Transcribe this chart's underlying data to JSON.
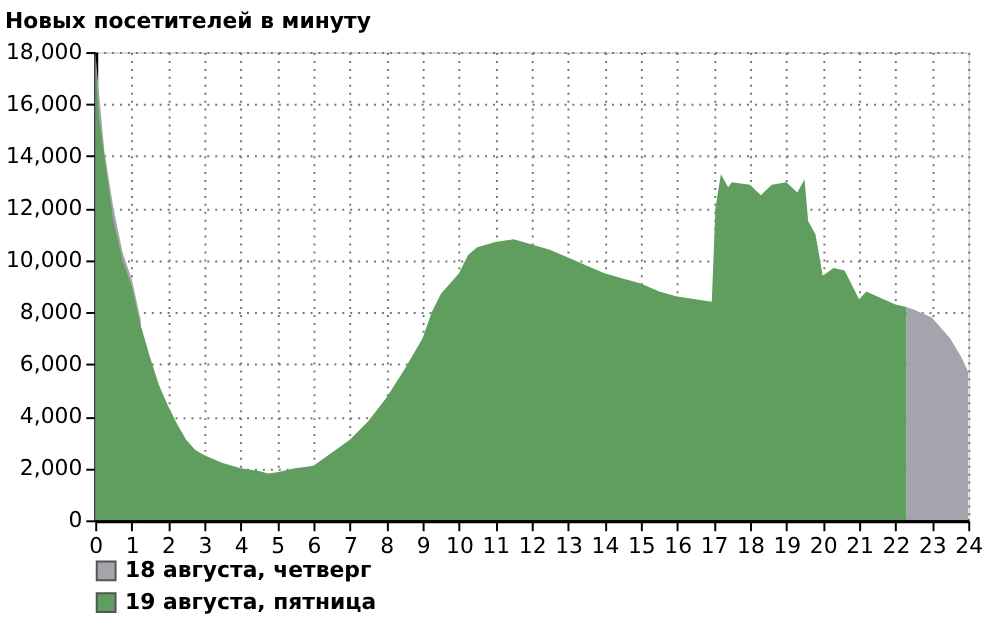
{
  "chart_data": {
    "type": "area",
    "title": "Новых посетителей в минуту",
    "xlim": [
      0,
      24
    ],
    "xticks": [
      0,
      1,
      2,
      3,
      4,
      5,
      6,
      7,
      8,
      9,
      10,
      11,
      12,
      13,
      14,
      15,
      16,
      17,
      18,
      19,
      20,
      21,
      22,
      23,
      24
    ],
    "ylim": [
      0,
      18000
    ],
    "yticks": [
      0,
      {
        "value": 2000,
        "label": "2,000"
      },
      {
        "value": 4000,
        "label": "4,000"
      },
      {
        "value": 6000,
        "label": "6,000"
      },
      {
        "value": 8000,
        "label": "8,000"
      },
      {
        "value": 10000,
        "label": "10,000"
      },
      {
        "value": 12000,
        "label": "12,000"
      },
      {
        "value": 14000,
        "label": "14,000"
      },
      {
        "value": 16000,
        "label": "16,000"
      },
      {
        "value": 18000,
        "label": "18,000"
      }
    ],
    "grid": true,
    "legend": "bottom left",
    "series": [
      {
        "name": "18 августа, четверг",
        "color": "#a4a4ac",
        "x": [
          0,
          0.25,
          0.5,
          0.75,
          1,
          1.25,
          1.4,
          22.3,
          22.5,
          23,
          23.5,
          23.8,
          24
        ],
        "values": [
          18000,
          14200,
          12000,
          10300,
          9300,
          7700,
          null,
          8200,
          8100,
          7800,
          7000,
          6300,
          5700
        ]
      },
      {
        "name": "19 августа, пятница",
        "color": "#5f9e5f",
        "x": [
          0,
          0.1,
          0.25,
          0.5,
          0.75,
          1,
          1.25,
          1.5,
          1.75,
          2,
          2.25,
          2.5,
          2.75,
          3,
          3.5,
          4,
          4.5,
          4.75,
          5,
          5.5,
          6,
          6.5,
          7,
          7.5,
          8,
          8.5,
          9,
          9.25,
          9.5,
          10,
          10.25,
          10.5,
          11,
          11.5,
          12,
          12.5,
          13,
          13.5,
          14,
          14.5,
          15,
          15.5,
          16,
          16.5,
          16.95,
          17.05,
          17.2,
          17.4,
          17.5,
          18,
          18.3,
          18.6,
          19,
          19.3,
          19.5,
          19.6,
          19.8,
          20,
          20.3,
          20.6,
          21,
          21.2,
          21.5,
          22,
          22.3
        ],
        "values": [
          18000,
          15500,
          14000,
          11500,
          10000,
          9000,
          7500,
          6300,
          5200,
          4400,
          3700,
          3100,
          2700,
          2500,
          2200,
          2000,
          1900,
          1800,
          1850,
          2000,
          2100,
          2600,
          3100,
          3800,
          4700,
          5800,
          7000,
          8000,
          8700,
          9500,
          10200,
          10500,
          10700,
          10800,
          10600,
          10400,
          10100,
          9800,
          9500,
          9300,
          9100,
          8800,
          8600,
          8500,
          8400,
          12000,
          13300,
          12800,
          13000,
          12900,
          12500,
          12900,
          13000,
          12600,
          13100,
          11500,
          11000,
          9400,
          9700,
          9600,
          8500,
          8800,
          8600,
          8300,
          8200
        ]
      }
    ]
  }
}
